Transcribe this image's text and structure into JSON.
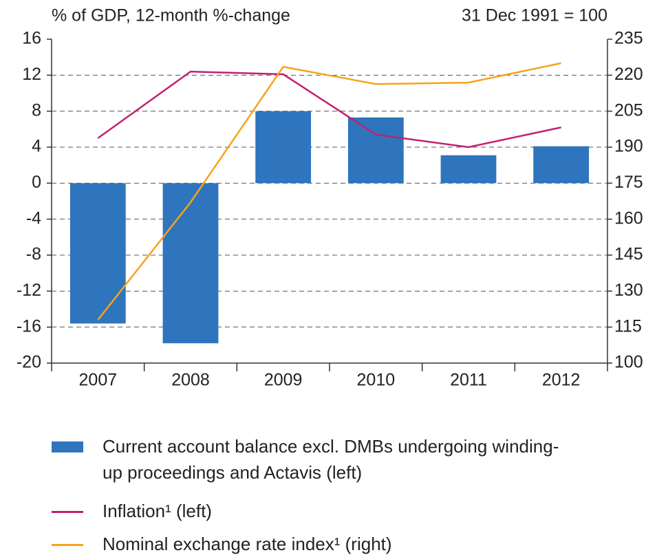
{
  "chart_data": {
    "type": "bar-line",
    "ylabel": "% of GDP, 12-month %-change",
    "y2label": "31 Dec 1991 = 100",
    "categories": [
      "2007",
      "2008",
      "2009",
      "2010",
      "2011",
      "2012"
    ],
    "series": [
      {
        "name": "Current account balance excl. DMBs undergoing winding-up proceedings and Actavis (left)",
        "type": "bar",
        "color": "#2e75bd",
        "values": [
          -15.6,
          -17.8,
          8.0,
          7.3,
          3.1,
          4.1
        ]
      },
      {
        "name": "Inflation¹ (left)",
        "type": "line",
        "color": "#c2206f",
        "values": [
          5.0,
          12.4,
          12.1,
          5.4,
          4.0,
          6.2
        ]
      },
      {
        "name": "Nominal exchange rate index¹ (right)",
        "type": "line",
        "axis": "y2",
        "color": "#f7a21b",
        "values": [
          118,
          167,
          223.5,
          216.3,
          216.9,
          225
        ]
      }
    ],
    "ylim": [
      -20,
      16
    ],
    "yticks": [
      -20,
      -16,
      -12,
      -8,
      -4,
      0,
      4,
      8,
      12,
      16
    ],
    "y2lim": [
      100,
      235
    ],
    "y2ticks": [
      100,
      115,
      130,
      145,
      160,
      175,
      190,
      205,
      220,
      235
    ],
    "grid": true
  }
}
